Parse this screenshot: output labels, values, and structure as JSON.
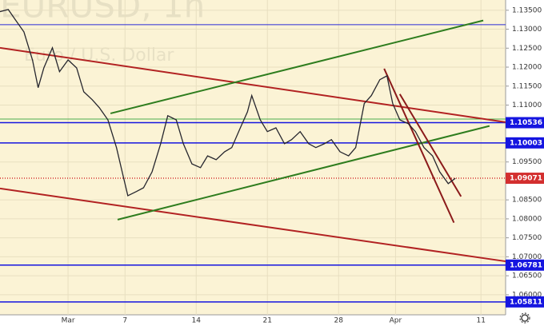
{
  "chart_data": {
    "type": "line",
    "watermark": [
      "EURUSD, 1h",
      "Euro / U.S. Dollar"
    ],
    "x": [
      -4.8,
      -4.2,
      -3.7,
      -3.1,
      -2.5,
      -2.1,
      -1.7,
      -1.1,
      -0.6,
      0,
      0.6,
      1.1,
      1.7,
      2.2,
      2.8,
      3.4,
      3.8,
      4.2,
      4.8,
      5.3,
      5.9,
      6.5,
      7,
      7.6,
      8.1,
      8.7,
      9.3,
      9.8,
      10.4,
      11,
      11.5,
      12.1,
      12.6,
      12.9,
      13.5,
      14,
      14.6,
      15.2,
      15.7,
      16.3,
      16.9,
      17.4,
      18,
      18.5,
      19.1,
      19.7,
      20.2,
      20.8,
      21.3,
      21.9,
      22.4,
      22.8,
      23.3,
      23.9,
      24.4,
      25,
      25.6,
      26.1,
      26.7,
      27.2
    ],
    "series": [
      {
        "color": "#26262e",
        "values": [
          1.1346,
          1.1352,
          1.1325,
          1.1293,
          1.1219,
          1.1146,
          1.1198,
          1.1251,
          1.1188,
          1.1219,
          1.1198,
          1.1135,
          1.1114,
          1.1093,
          1.1061,
          1.0988,
          1.0924,
          1.0861,
          1.0872,
          1.0882,
          1.0924,
          1.0998,
          1.1072,
          1.1061,
          1.0998,
          1.0945,
          1.0935,
          1.0966,
          1.0956,
          1.0977,
          1.0988,
          1.104,
          1.1082,
          1.1125,
          1.1061,
          1.103,
          1.104,
          1.0998,
          1.1009,
          1.103,
          1.0998,
          1.0988,
          1.0998,
          1.1009,
          1.0977,
          1.0966,
          1.0988,
          1.1104,
          1.1125,
          1.1167,
          1.1177,
          1.1104,
          1.1061,
          1.1051,
          1.103,
          1.0988,
          1.0966,
          1.0924,
          1.0893,
          1.0907
        ]
      }
    ],
    "xlim": [
      -4.78,
      30.73
    ],
    "xticks": [
      {
        "value": 0,
        "label": "Mar"
      },
      {
        "value": 4,
        "label": "7"
      },
      {
        "value": 9,
        "label": "14"
      },
      {
        "value": 14,
        "label": "21"
      },
      {
        "value": 19,
        "label": "28"
      },
      {
        "value": 23,
        "label": "Apr"
      },
      {
        "value": 29,
        "label": "11"
      }
    ],
    "ylim": [
      1.0547,
      1.1377
    ],
    "yticks": [
      {
        "value": 1.135,
        "label": "1.13500"
      },
      {
        "value": 1.13,
        "label": "1.13000"
      },
      {
        "value": 1.125,
        "label": "1.12500"
      },
      {
        "value": 1.12,
        "label": "1.12000"
      },
      {
        "value": 1.115,
        "label": "1.11500"
      },
      {
        "value": 1.11,
        "label": "1.11000"
      },
      {
        "value": 1.095,
        "label": "1.09500"
      },
      {
        "value": 1.085,
        "label": "1.08500"
      },
      {
        "value": 1.08,
        "label": "1.08000"
      },
      {
        "value": 1.075,
        "label": "1.07500"
      },
      {
        "value": 1.07,
        "label": "1.07000"
      },
      {
        "value": 1.065,
        "label": "1.06500"
      },
      {
        "value": 1.06,
        "label": "1.06000"
      }
    ],
    "grid": true,
    "levels": [
      {
        "value": 1.1312,
        "color": "#2a2ad8",
        "badge": false
      },
      {
        "value": 1.1063,
        "color": "#4caf50",
        "badge": false
      },
      {
        "value": 1.10536,
        "color": "#1515e0",
        "badge": true
      },
      {
        "value": 1.10003,
        "color": "#1515e0",
        "badge": true
      },
      {
        "value": 1.09071,
        "color": "#d32f2f",
        "badge": true
      },
      {
        "value": 1.06781,
        "color": "#1515e0",
        "badge": true
      },
      {
        "value": 1.05811,
        "color": "#1515e0",
        "badge": true
      }
    ],
    "trendlines": [
      {
        "color": "#b22222",
        "x": [
          -4.78,
          30.73
        ],
        "y": [
          1.1251,
          1.1055
        ]
      },
      {
        "color": "#b22222",
        "x": [
          -4.78,
          30.73
        ],
        "y": [
          1.088,
          1.0688
        ]
      },
      {
        "color": "#2e7d1e",
        "x": [
          2.98,
          29.16
        ],
        "y": [
          1.1078,
          1.1323
        ]
      },
      {
        "color": "#2e7d1e",
        "x": [
          3.48,
          29.6
        ],
        "y": [
          1.0798,
          1.1045
        ]
      },
      {
        "color": "#8b1a1a",
        "x": [
          22.2,
          27.1
        ],
        "y": [
          1.1196,
          1.079
        ]
      },
      {
        "color": "#8b1a1a",
        "x": [
          23.3,
          27.6
        ],
        "y": [
          1.1129,
          1.0859
        ]
      }
    ]
  }
}
